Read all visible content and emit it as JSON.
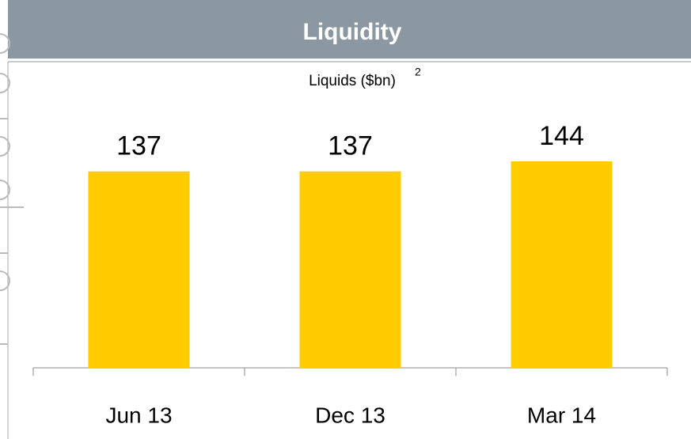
{
  "chart_data": {
    "type": "bar",
    "title": "Liquidity",
    "subtitle": "Liquids ($bn)",
    "subtitle_note": "2",
    "categories": [
      "Jun 13",
      "Dec 13",
      "Mar 14"
    ],
    "values": [
      137,
      137,
      144
    ],
    "color": "#ffcc00"
  }
}
